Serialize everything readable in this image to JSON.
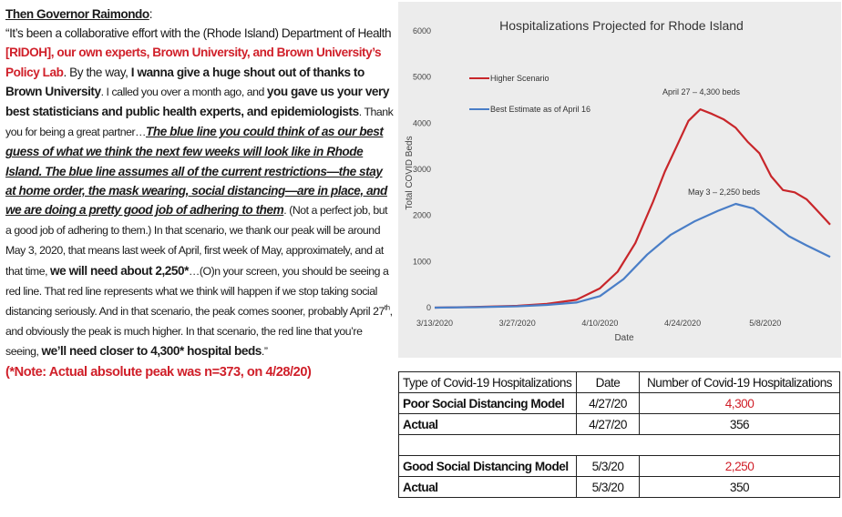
{
  "quote": {
    "heading": "Then Governor Raimondo",
    "colon": ":",
    "p1": "“It’s been a collaborative effort with the (Rhode Island) Department of Health ",
    "p2_red": "[RIDOH], our own experts, Brown University, and Brown University’s Policy Lab",
    "p3": ". By the way, ",
    "p4_bold": "I wanna give a huge shout out of thanks to Brown University",
    "p5_small": ". I called you over a month ago, and ",
    "p6_bold": "you gave us your very best statisticians and public health experts, and epidemiologists",
    "p7_small": ". Thank you for being a great partner…",
    "p8_bu": "The blue line you could think of as our best guess of what we think the next few weeks will look like in Rhode Island. The blue line assumes all of the current restrictions—the stay at home order, the mask wearing, social distancing—are in place, and we are doing a pretty good job of adhering to them",
    "p9_small": ". (Not a perfect job, but a good job of adhering to them.) In that scenario, we thank our peak will be around May 3, 2020, that means last week of April, first week of May, approximately, and at that time, ",
    "p10_bold": "we will need about 2,250*",
    "p11_small": "…(O)n your screen, you should be seeing a red line. That red line represents what we think will happen if we stop taking social distancing seriously. And in that scenario, the peak comes sooner, probably April 27",
    "p11_sup": "th",
    "p12_small": ", and obviously the peak is much higher. In that scenario, the red line that you’re seeing, ",
    "p13_bold": "we’ll need closer to 4,300* hospital beds",
    "p14_small": ".”",
    "note": "(*Note: Actual absolute peak was n=373, on 4/28/20)"
  },
  "chart_data": {
    "type": "line",
    "title": "Hospitalizations Projected for Rhode Island",
    "xlabel": "Date",
    "ylabel": "Total COVID Beds",
    "ylim": [
      0,
      6000
    ],
    "yticks": [
      0,
      1000,
      2000,
      3000,
      4000,
      5000,
      6000
    ],
    "xticks": [
      "3/13/2020",
      "3/27/2020",
      "4/10/2020",
      "4/24/2020",
      "5/8/2020"
    ],
    "xlim": [
      "2020-03-13",
      "2020-05-19"
    ],
    "legend_position": "top-left",
    "grid": false,
    "series": [
      {
        "name": "Higher Scenario",
        "color": "#c8262a",
        "x": [
          "2020-03-13",
          "2020-03-20",
          "2020-03-27",
          "2020-04-01",
          "2020-04-06",
          "2020-04-10",
          "2020-04-13",
          "2020-04-16",
          "2020-04-19",
          "2020-04-21",
          "2020-04-23",
          "2020-04-25",
          "2020-04-27",
          "2020-04-29",
          "2020-05-01",
          "2020-05-03",
          "2020-05-05",
          "2020-05-07",
          "2020-05-09",
          "2020-05-11",
          "2020-05-13",
          "2020-05-15",
          "2020-05-17",
          "2020-05-19"
        ],
        "values": [
          0,
          15,
          40,
          80,
          170,
          420,
          780,
          1400,
          2300,
          2950,
          3500,
          4050,
          4300,
          4200,
          4080,
          3900,
          3600,
          3350,
          2850,
          2550,
          2500,
          2350,
          2080,
          1800
        ]
      },
      {
        "name": "Best Estimate as of April 16",
        "color": "#4a7ec7",
        "x": [
          "2020-03-13",
          "2020-03-20",
          "2020-03-27",
          "2020-04-01",
          "2020-04-06",
          "2020-04-10",
          "2020-04-14",
          "2020-04-18",
          "2020-04-22",
          "2020-04-26",
          "2020-04-30",
          "2020-05-03",
          "2020-05-06",
          "2020-05-09",
          "2020-05-12",
          "2020-05-15",
          "2020-05-19"
        ],
        "values": [
          0,
          10,
          30,
          60,
          110,
          250,
          620,
          1150,
          1580,
          1870,
          2100,
          2250,
          2150,
          1850,
          1550,
          1350,
          1100
        ]
      }
    ],
    "annotations": [
      {
        "text": "April 27 – 4,300 beds"
      },
      {
        "text": "May 3 – 2,250 beds"
      }
    ]
  },
  "table": {
    "headers": [
      "Type of Covid-19 Hospitalizations",
      "Date",
      "Number of Covid-19 Hospitalizations"
    ],
    "rows": [
      {
        "type": "Poor Social Distancing Model",
        "date": "4/27/20",
        "number": "4,300",
        "red": true
      },
      {
        "type": "Actual",
        "date": "4/27/20",
        "number": "356",
        "red": false
      },
      {
        "type": "",
        "date": "",
        "number": "",
        "gap": true
      },
      {
        "type": "Good Social Distancing Model",
        "date": "5/3/20",
        "number": "2,250",
        "red": true
      },
      {
        "type": "Actual",
        "date": "5/3/20",
        "number": "350",
        "red": false
      }
    ]
  }
}
